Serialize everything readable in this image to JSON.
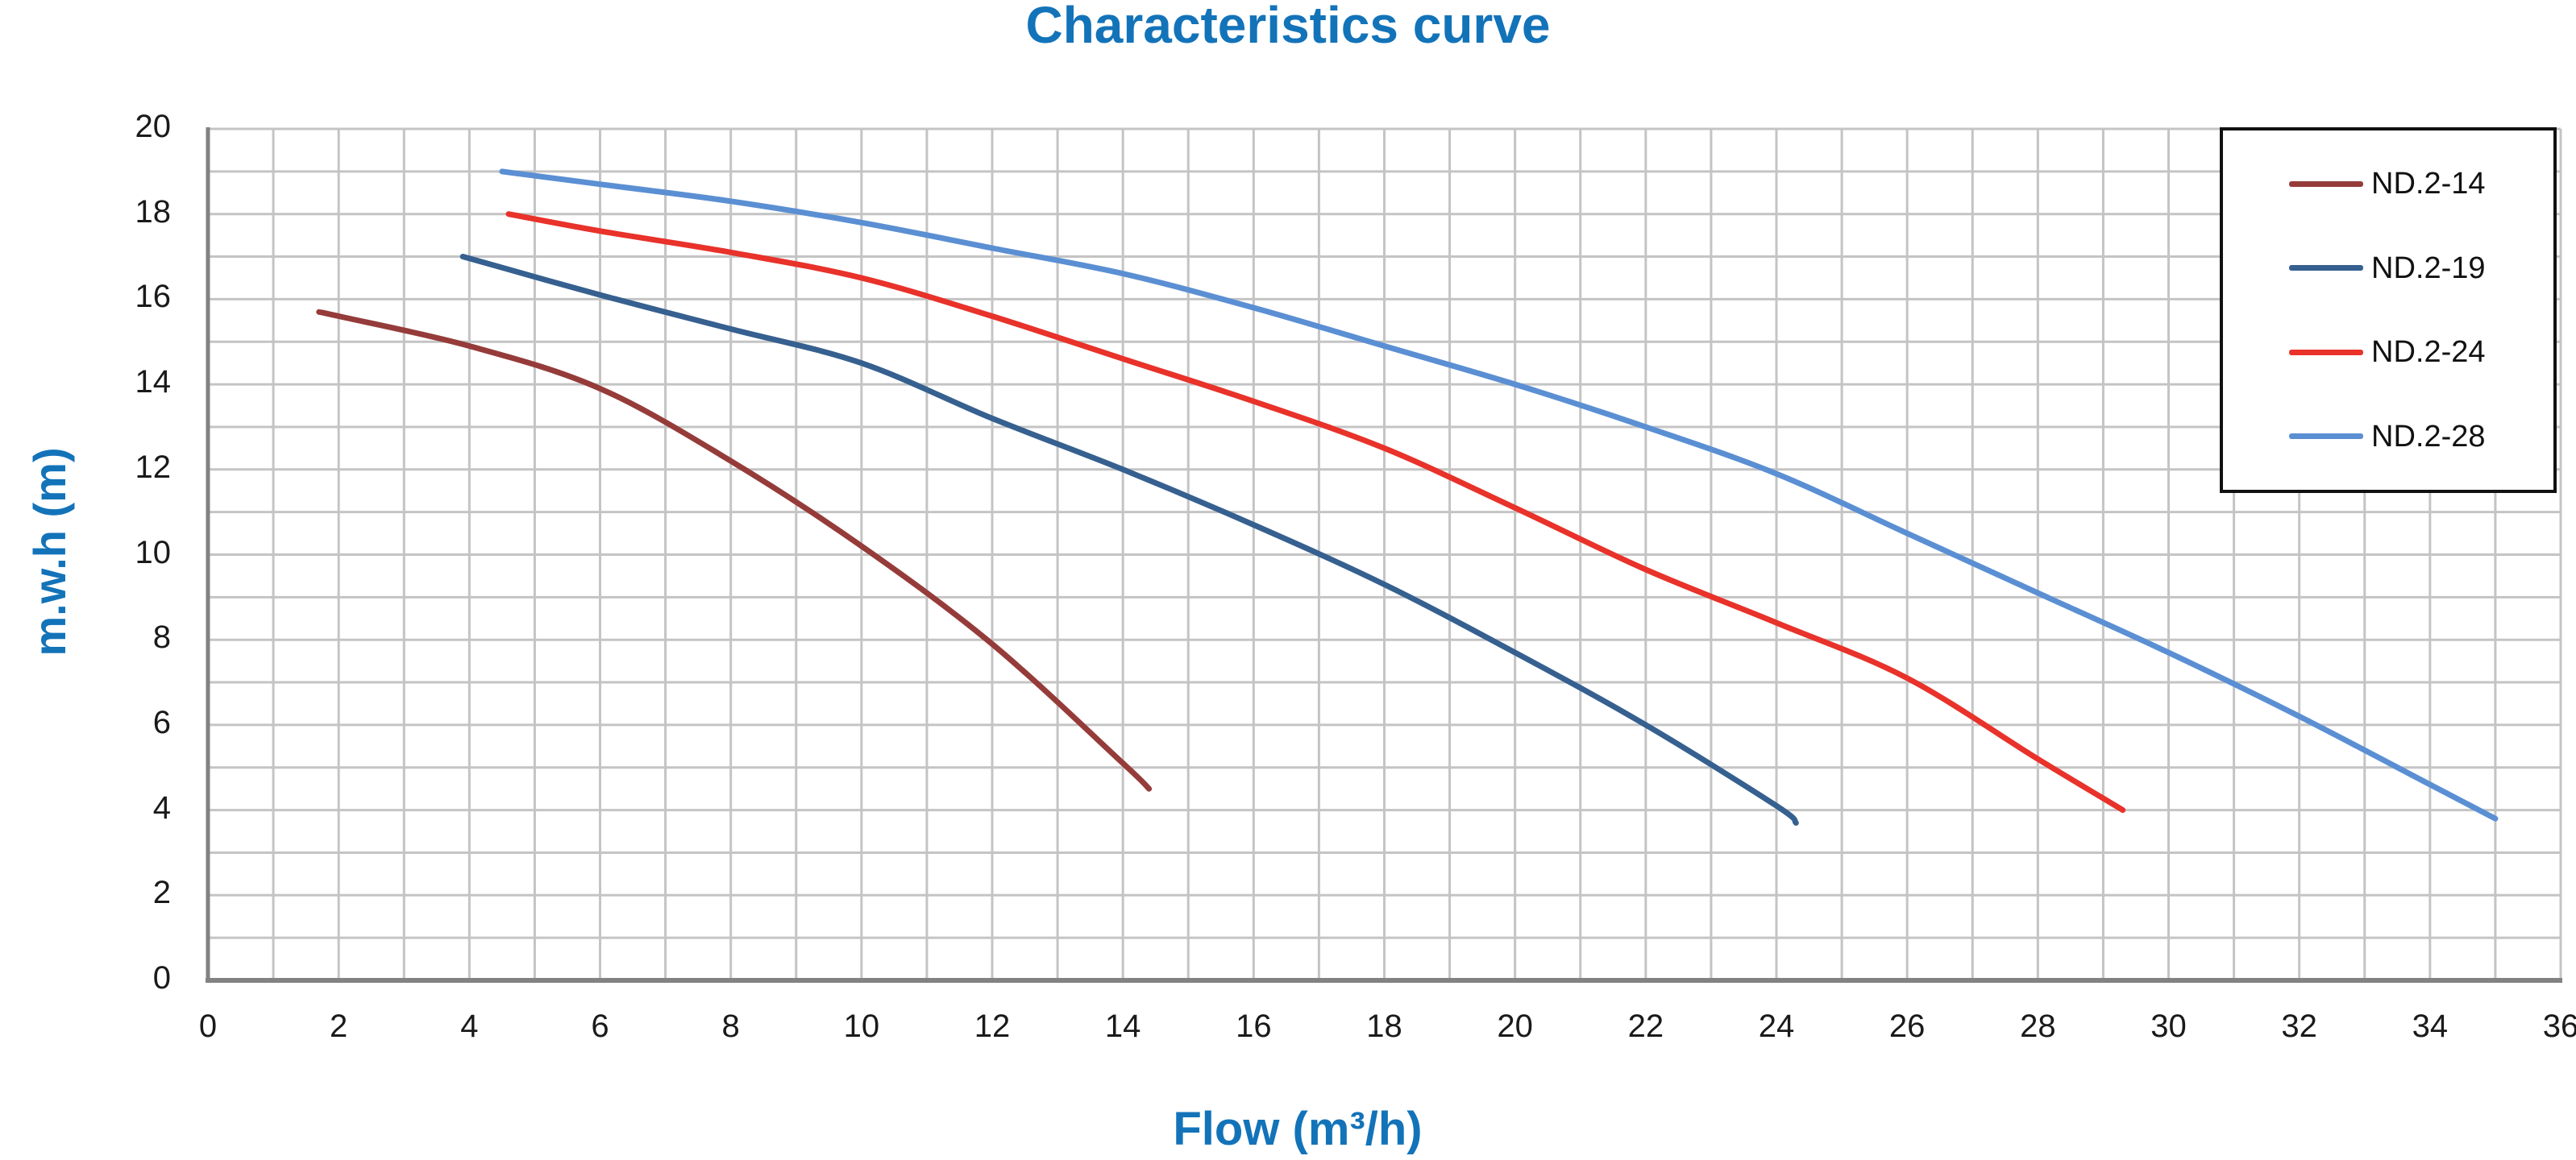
{
  "title": "Characteristics curve",
  "colors": {
    "title_text": "#1373B9",
    "axis_label_text": "#1373B9",
    "tick_text": "#1A1A1A",
    "grid": "#C4C4C4",
    "axis": "#828282",
    "legend_border": "#111111",
    "background": "#FFFFFF"
  },
  "chart_data": {
    "type": "line",
    "title": "Characteristics curve",
    "xlabel": "Flow (m³/h)",
    "ylabel": "m.w.h (m)",
    "xlim": [
      0,
      36
    ],
    "ylim": [
      0,
      20
    ],
    "x_ticks": [
      0,
      2,
      4,
      6,
      8,
      10,
      12,
      14,
      16,
      18,
      20,
      22,
      24,
      26,
      28,
      30,
      32,
      34,
      36
    ],
    "y_ticks": [
      0,
      2,
      4,
      6,
      8,
      10,
      12,
      14,
      16,
      18,
      20
    ],
    "grid": "on",
    "grid_step": 1,
    "legend_position": "top-right boxed",
    "series": [
      {
        "name": "ND.2-14",
        "color": "#953C3A",
        "points": [
          [
            1.7,
            15.7
          ],
          [
            2,
            15.6
          ],
          [
            4,
            14.9
          ],
          [
            6,
            13.9
          ],
          [
            8,
            12.2
          ],
          [
            10,
            10.2
          ],
          [
            12,
            7.9
          ],
          [
            14,
            5.1
          ],
          [
            14.4,
            4.5
          ]
        ]
      },
      {
        "name": "ND.2-19",
        "color": "#36608F",
        "points": [
          [
            3.9,
            17.0
          ],
          [
            6,
            16.1
          ],
          [
            8,
            15.3
          ],
          [
            10,
            14.5
          ],
          [
            12,
            13.2
          ],
          [
            14,
            12.0
          ],
          [
            16,
            10.7
          ],
          [
            18,
            9.3
          ],
          [
            20,
            7.7
          ],
          [
            22,
            6.0
          ],
          [
            24,
            4.1
          ],
          [
            24.3,
            3.7
          ]
        ]
      },
      {
        "name": "ND.2-24",
        "color": "#E8322A",
        "points": [
          [
            4.6,
            18.0
          ],
          [
            6,
            17.6
          ],
          [
            8,
            17.1
          ],
          [
            10,
            16.5
          ],
          [
            12,
            15.6
          ],
          [
            14,
            14.6
          ],
          [
            16,
            13.6
          ],
          [
            18,
            12.5
          ],
          [
            20,
            11.1
          ],
          [
            22,
            9.65
          ],
          [
            24,
            8.4
          ],
          [
            26,
            7.1
          ],
          [
            28,
            5.2
          ],
          [
            29.3,
            4.0
          ]
        ]
      },
      {
        "name": "ND.2-28",
        "color": "#5B8FD3",
        "points": [
          [
            4.5,
            19.0
          ],
          [
            6,
            18.7
          ],
          [
            8,
            18.3
          ],
          [
            10,
            17.8
          ],
          [
            12,
            17.2
          ],
          [
            14,
            16.6
          ],
          [
            16,
            15.8
          ],
          [
            18,
            14.9
          ],
          [
            20,
            14.0
          ],
          [
            22,
            13.0
          ],
          [
            24,
            11.9
          ],
          [
            26,
            10.5
          ],
          [
            28,
            9.1
          ],
          [
            30,
            7.7
          ],
          [
            32,
            6.2
          ],
          [
            34,
            4.6
          ],
          [
            35,
            3.8
          ]
        ]
      }
    ]
  }
}
